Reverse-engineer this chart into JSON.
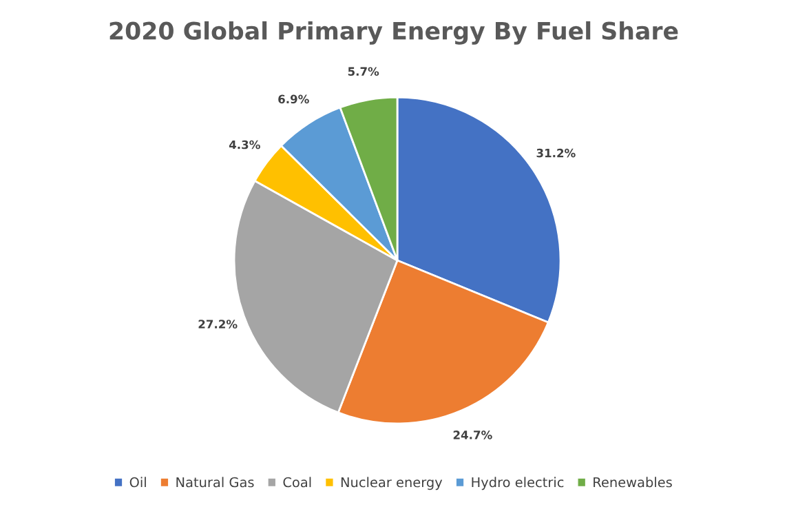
{
  "chart_data": {
    "type": "pie",
    "title": "2020 Global Primary Energy By Fuel Share",
    "categories": [
      "Oil",
      "Natural Gas",
      "Coal",
      "Nuclear energy",
      "Hydro electric",
      "Renewables"
    ],
    "values": [
      31.2,
      24.7,
      27.2,
      4.3,
      6.9,
      5.7
    ],
    "value_labels": [
      "31.2%",
      "24.7%",
      "27.2%",
      "4.3%",
      "6.9%",
      "5.7%"
    ],
    "colors": [
      "#4472c4",
      "#ed7d31",
      "#a5a5a5",
      "#ffc000",
      "#5b9bd5",
      "#70ad47"
    ],
    "legend": "bottom"
  }
}
